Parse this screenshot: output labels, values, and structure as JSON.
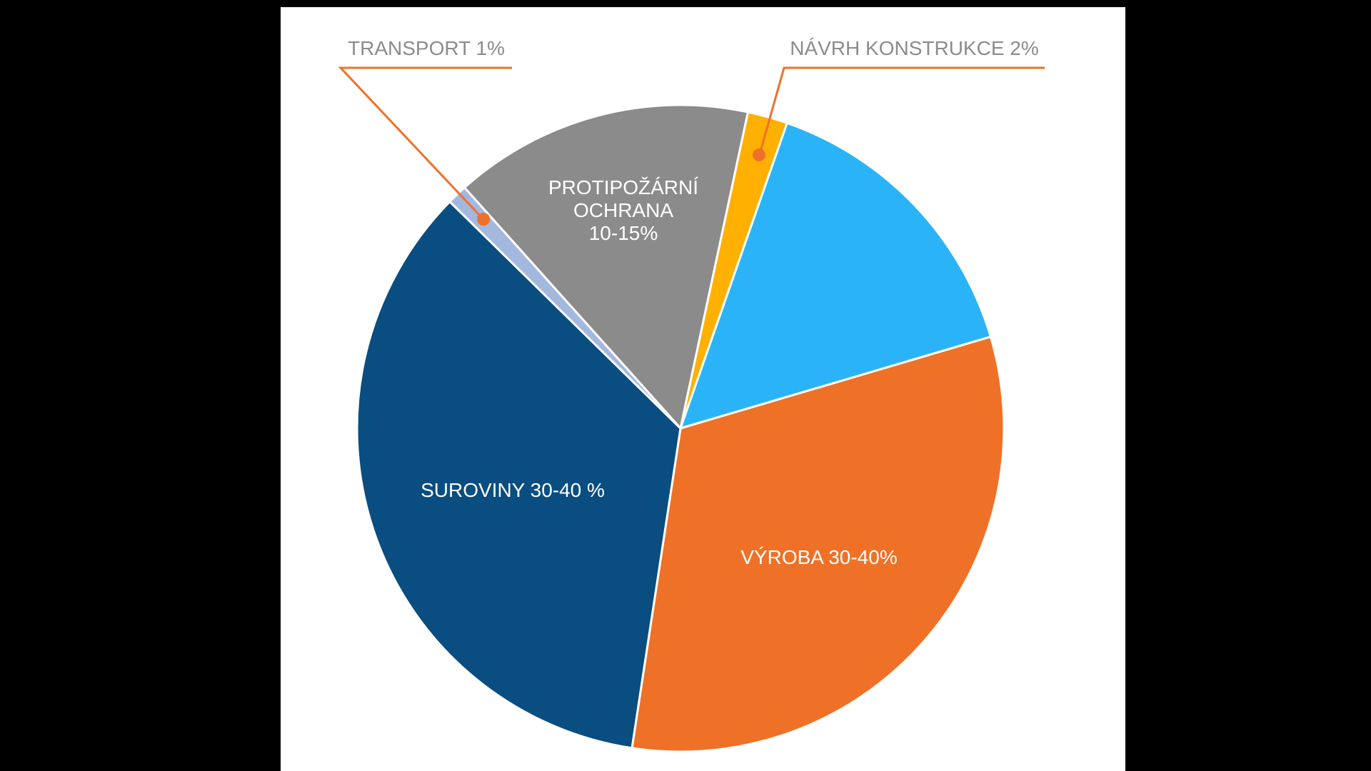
{
  "chart_data": {
    "type": "pie",
    "title": "",
    "legend_position": "none",
    "start_angle_deg": -41.9,
    "callout_color": "#F07028",
    "outer_label_color": "#8C8C8C",
    "inner_label_color": "#FFFFFF",
    "background_color": "#FFFFFF",
    "slices": [
      {
        "id": "protipozarni-ochrana",
        "name": "PROTIPOŽÁRNÍ OCHRANA",
        "stated_value": "10-15%",
        "value_pct": 15.0,
        "color": "#8B8B8B",
        "label_placement": "inside",
        "label": "PROTIPOŽÁRNÍ\nOCHRANA\n10-15%"
      },
      {
        "id": "navrh-konstrukce",
        "name": "NÁVRH KONSTRUKCE",
        "stated_value": "2%",
        "value_pct": 2.0,
        "color": "#FFB000",
        "label_placement": "callout",
        "label": "NÁVRH KONSTRUKCE 2%"
      },
      {
        "id": "unlabeled",
        "name": "",
        "stated_value": "",
        "value_pct": 15.1,
        "color": "#2AB4F7",
        "label_placement": "none",
        "label": ""
      },
      {
        "id": "vyroba",
        "name": "VÝROBA",
        "stated_value": "30-40%",
        "value_pct": 32.0,
        "color": "#EE7127",
        "label_placement": "inside",
        "label": "VÝROBA 30-40%"
      },
      {
        "id": "suroviny",
        "name": "SUROVINY",
        "stated_value": "30-40 %",
        "value_pct": 35.0,
        "color": "#0A4D80",
        "label_placement": "inside",
        "label": "SUROVINY 30-40 %"
      },
      {
        "id": "transport",
        "name": "TRANSPORT",
        "stated_value": "1%",
        "value_pct": 1.0,
        "color": "#A3B8DF",
        "label_placement": "callout",
        "label": "TRANSPORT 1%"
      }
    ]
  }
}
